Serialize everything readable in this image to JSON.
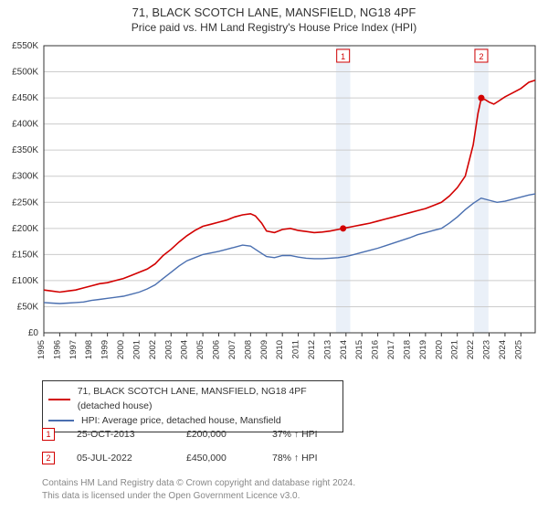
{
  "title_line1": "71, BLACK SCOTCH LANE, MANSFIELD, NG18 4PF",
  "title_line2": "Price paid vs. HM Land Registry's House Price Index (HPI)",
  "chart": {
    "type": "line",
    "background_color": "#ffffff",
    "plot_border_color": "#333333",
    "grid_color": "#cccccc",
    "x": {
      "min": 1995,
      "max": 2025.9,
      "ticks": [
        1995,
        1996,
        1997,
        1998,
        1999,
        2000,
        2001,
        2002,
        2003,
        2004,
        2005,
        2006,
        2007,
        2008,
        2009,
        2010,
        2011,
        2012,
        2013,
        2014,
        2015,
        2016,
        2017,
        2018,
        2019,
        2020,
        2021,
        2022,
        2023,
        2024,
        2025
      ]
    },
    "y": {
      "min": 0,
      "max": 550000,
      "ticks": [
        0,
        50000,
        100000,
        150000,
        200000,
        250000,
        300000,
        350000,
        400000,
        450000,
        500000,
        550000
      ],
      "tick_labels": [
        "£0",
        "£50K",
        "£100K",
        "£150K",
        "£200K",
        "£250K",
        "£300K",
        "£350K",
        "£400K",
        "£450K",
        "£500K",
        "£550K"
      ]
    },
    "series": [
      {
        "name": "price_paid",
        "legend": "71, BLACK SCOTCH LANE, MANSFIELD, NG18 4PF (detached house)",
        "color": "#d20000",
        "line_width": 1.6,
        "points": [
          [
            1995.0,
            82000
          ],
          [
            1995.5,
            80000
          ],
          [
            1996.0,
            78000
          ],
          [
            1996.5,
            80000
          ],
          [
            1997.0,
            82000
          ],
          [
            1997.5,
            86000
          ],
          [
            1998.0,
            90000
          ],
          [
            1998.5,
            94000
          ],
          [
            1999.0,
            96000
          ],
          [
            1999.5,
            100000
          ],
          [
            2000.0,
            104000
          ],
          [
            2000.5,
            110000
          ],
          [
            2001.0,
            116000
          ],
          [
            2001.5,
            122000
          ],
          [
            2002.0,
            132000
          ],
          [
            2002.5,
            148000
          ],
          [
            2003.0,
            160000
          ],
          [
            2003.5,
            174000
          ],
          [
            2004.0,
            186000
          ],
          [
            2004.5,
            196000
          ],
          [
            2005.0,
            204000
          ],
          [
            2005.5,
            208000
          ],
          [
            2006.0,
            212000
          ],
          [
            2006.5,
            216000
          ],
          [
            2007.0,
            222000
          ],
          [
            2007.5,
            226000
          ],
          [
            2008.0,
            228000
          ],
          [
            2008.3,
            224000
          ],
          [
            2008.7,
            210000
          ],
          [
            2009.0,
            195000
          ],
          [
            2009.5,
            192000
          ],
          [
            2010.0,
            198000
          ],
          [
            2010.5,
            200000
          ],
          [
            2011.0,
            196000
          ],
          [
            2011.5,
            194000
          ],
          [
            2012.0,
            192000
          ],
          [
            2012.5,
            193000
          ],
          [
            2013.0,
            195000
          ],
          [
            2013.5,
            198000
          ],
          [
            2013.82,
            200000
          ],
          [
            2014.0,
            201000
          ],
          [
            2014.5,
            204000
          ],
          [
            2015.0,
            207000
          ],
          [
            2015.5,
            210000
          ],
          [
            2016.0,
            214000
          ],
          [
            2016.5,
            218000
          ],
          [
            2017.0,
            222000
          ],
          [
            2017.5,
            226000
          ],
          [
            2018.0,
            230000
          ],
          [
            2018.5,
            234000
          ],
          [
            2019.0,
            238000
          ],
          [
            2019.5,
            244000
          ],
          [
            2020.0,
            250000
          ],
          [
            2020.5,
            262000
          ],
          [
            2021.0,
            278000
          ],
          [
            2021.5,
            300000
          ],
          [
            2022.0,
            360000
          ],
          [
            2022.3,
            420000
          ],
          [
            2022.51,
            450000
          ],
          [
            2022.8,
            446000
          ],
          [
            2023.0,
            442000
          ],
          [
            2023.3,
            438000
          ],
          [
            2023.6,
            444000
          ],
          [
            2024.0,
            452000
          ],
          [
            2024.5,
            460000
          ],
          [
            2025.0,
            468000
          ],
          [
            2025.5,
            480000
          ],
          [
            2025.9,
            484000
          ]
        ]
      },
      {
        "name": "hpi",
        "legend": "HPI: Average price, detached house, Mansfield",
        "color": "#4a6fb0",
        "line_width": 1.4,
        "points": [
          [
            1995.0,
            58000
          ],
          [
            1995.5,
            57000
          ],
          [
            1996.0,
            56000
          ],
          [
            1996.5,
            57000
          ],
          [
            1997.0,
            58000
          ],
          [
            1997.5,
            59000
          ],
          [
            1998.0,
            62000
          ],
          [
            1998.5,
            64000
          ],
          [
            1999.0,
            66000
          ],
          [
            1999.5,
            68000
          ],
          [
            2000.0,
            70000
          ],
          [
            2000.5,
            74000
          ],
          [
            2001.0,
            78000
          ],
          [
            2001.5,
            84000
          ],
          [
            2002.0,
            92000
          ],
          [
            2002.5,
            104000
          ],
          [
            2003.0,
            116000
          ],
          [
            2003.5,
            128000
          ],
          [
            2004.0,
            138000
          ],
          [
            2004.5,
            144000
          ],
          [
            2005.0,
            150000
          ],
          [
            2005.5,
            153000
          ],
          [
            2006.0,
            156000
          ],
          [
            2006.5,
            160000
          ],
          [
            2007.0,
            164000
          ],
          [
            2007.5,
            168000
          ],
          [
            2008.0,
            166000
          ],
          [
            2008.5,
            156000
          ],
          [
            2009.0,
            146000
          ],
          [
            2009.5,
            144000
          ],
          [
            2010.0,
            148000
          ],
          [
            2010.5,
            148000
          ],
          [
            2011.0,
            145000
          ],
          [
            2011.5,
            143000
          ],
          [
            2012.0,
            142000
          ],
          [
            2012.5,
            142000
          ],
          [
            2013.0,
            143000
          ],
          [
            2013.5,
            144000
          ],
          [
            2014.0,
            146000
          ],
          [
            2014.5,
            150000
          ],
          [
            2015.0,
            154000
          ],
          [
            2015.5,
            158000
          ],
          [
            2016.0,
            162000
          ],
          [
            2016.5,
            167000
          ],
          [
            2017.0,
            172000
          ],
          [
            2017.5,
            177000
          ],
          [
            2018.0,
            182000
          ],
          [
            2018.5,
            188000
          ],
          [
            2019.0,
            192000
          ],
          [
            2019.5,
            196000
          ],
          [
            2020.0,
            200000
          ],
          [
            2020.5,
            210000
          ],
          [
            2021.0,
            222000
          ],
          [
            2021.5,
            236000
          ],
          [
            2022.0,
            248000
          ],
          [
            2022.5,
            258000
          ],
          [
            2023.0,
            254000
          ],
          [
            2023.5,
            250000
          ],
          [
            2024.0,
            252000
          ],
          [
            2024.5,
            256000
          ],
          [
            2025.0,
            260000
          ],
          [
            2025.5,
            264000
          ],
          [
            2025.9,
            266000
          ]
        ]
      }
    ],
    "sale_bands": [
      {
        "label": "1",
        "date_x": 2013.82,
        "color": "#d20000",
        "band_color": "#eaf0f8"
      },
      {
        "label": "2",
        "date_x": 2022.51,
        "color": "#d20000",
        "band_color": "#eaf0f8"
      }
    ],
    "band_half_width_years": 0.45
  },
  "sales": [
    {
      "idx": "1",
      "date": "25-OCT-2013",
      "price": "£200,000",
      "hpi": "37% ↑ HPI",
      "color": "#d20000"
    },
    {
      "idx": "2",
      "date": "05-JUL-2022",
      "price": "£450,000",
      "hpi": "78% ↑ HPI",
      "color": "#d20000"
    }
  ],
  "footer_line1": "Contains HM Land Registry data © Crown copyright and database right 2024.",
  "footer_line2": "This data is licensed under the Open Government Licence v3.0."
}
